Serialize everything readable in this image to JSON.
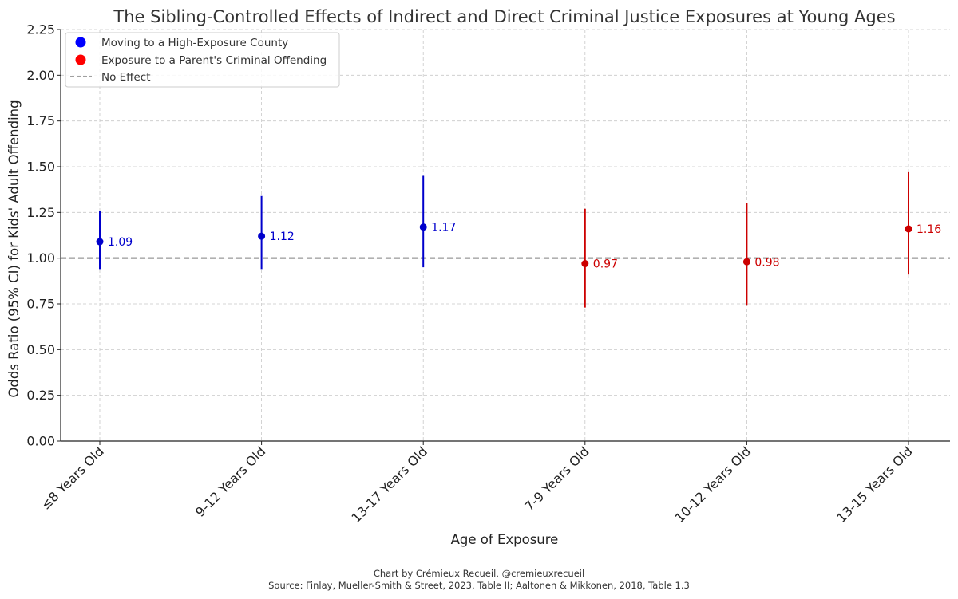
{
  "chart_data": {
    "type": "scatter",
    "title": "The Sibling-Controlled Effects of Indirect and Direct Criminal Justice Exposures at Young Ages",
    "xlabel": "Age of Exposure",
    "ylabel": "Odds Ratio (95% CI) for Kids' Adult Offending",
    "ylim": [
      0,
      2.25
    ],
    "yticks": [
      "0.00",
      "0.25",
      "0.50",
      "0.75",
      "1.00",
      "1.25",
      "1.50",
      "1.75",
      "2.00",
      "2.25"
    ],
    "categories": [
      "≤8 Years Old",
      "9-12 Years Old",
      "13-17 Years Old",
      "7-9 Years Old",
      "10-12 Years Old",
      "13-15 Years Old"
    ],
    "grid": true,
    "legend_position": "top-left",
    "reference_line": {
      "value": 1.0,
      "label": "No Effect",
      "color": "#808080"
    },
    "series": [
      {
        "name": "Moving to a High-Exposure County",
        "color": "#0000cc",
        "marker_color": "#0000ff",
        "points": [
          {
            "category": "≤8 Years Old",
            "value": 1.09,
            "label": "1.09",
            "ci": [
              0.94,
              1.26
            ]
          },
          {
            "category": "9-12 Years Old",
            "value": 1.12,
            "label": "1.12",
            "ci": [
              0.94,
              1.34
            ]
          },
          {
            "category": "13-17 Years Old",
            "value": 1.17,
            "label": "1.17",
            "ci": [
              0.95,
              1.45
            ]
          }
        ]
      },
      {
        "name": "Exposure to a Parent's Criminal Offending",
        "color": "#cc0000",
        "marker_color": "#ff0000",
        "points": [
          {
            "category": "7-9 Years Old",
            "value": 0.97,
            "label": "0.97",
            "ci": [
              0.73,
              1.27
            ]
          },
          {
            "category": "10-12 Years Old",
            "value": 0.98,
            "label": "0.98",
            "ci": [
              0.74,
              1.3
            ]
          },
          {
            "category": "13-15 Years Old",
            "value": 1.16,
            "label": "1.16",
            "ci": [
              0.91,
              1.47
            ]
          }
        ]
      }
    ]
  },
  "footer": {
    "credit": "Chart by Crémieux Recueil, @cremieuxrecueil",
    "source": "Source: Finlay, Mueller-Smith & Street, 2023, Table II; Aaltonen & Mikkonen, 2018, Table 1.3"
  }
}
